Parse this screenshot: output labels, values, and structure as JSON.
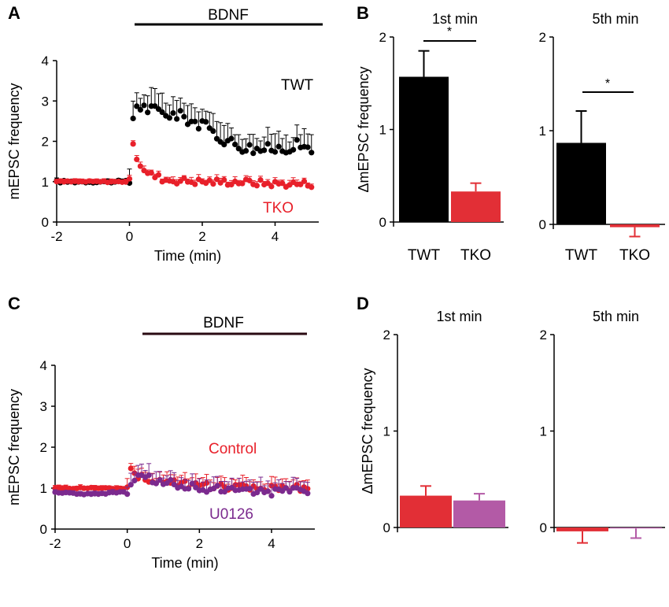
{
  "colors": {
    "black": "#000000",
    "red": "#e8202a",
    "purple": "#7b2a8e",
    "bar_red": "#e22f36",
    "bar_purple": "#b35aa6"
  },
  "panels": {
    "A": {
      "letter": "A",
      "drug": "BDNF"
    },
    "B": {
      "letter": "B",
      "ylabel": "ΔmEPSC frequency",
      "significance": "*"
    },
    "C": {
      "letter": "C",
      "drug": "BDNF"
    },
    "D": {
      "letter": "D",
      "ylabel": "ΔmEPSC frequency"
    }
  },
  "chart_data": [
    {
      "id": "A",
      "type": "scatter",
      "xlabel": "Time (min)",
      "ylabel": "mEPSC frequency",
      "xlim": [
        -2,
        5.2
      ],
      "ylim": [
        0,
        4
      ],
      "xticks": [
        "-2",
        "0",
        "2",
        "4"
      ],
      "yticks": [
        "0",
        "1",
        "2",
        "3",
        "4"
      ],
      "bdnf_from_min": 0,
      "series": [
        {
          "name": "TWT",
          "color": "#000000",
          "t": [
            -2.0,
            -1.0,
            -0.5,
            0.0,
            0.1,
            0.2,
            0.5,
            1.0,
            1.5,
            2.0,
            2.5,
            3.0,
            3.5,
            4.0,
            4.5,
            5.0
          ],
          "y": [
            1.0,
            1.0,
            1.0,
            1.0,
            2.6,
            2.9,
            2.8,
            2.7,
            2.6,
            2.4,
            2.1,
            1.9,
            1.8,
            1.8,
            1.9,
            1.85
          ],
          "err": 0.4
        },
        {
          "name": "TKO",
          "color": "#e8202a",
          "t": [
            -2.0,
            -1.0,
            -0.5,
            0.0,
            0.1,
            0.25,
            0.5,
            1.0,
            2.0,
            3.0,
            4.0,
            5.0
          ],
          "y": [
            1.0,
            1.0,
            1.0,
            1.0,
            1.85,
            1.5,
            1.2,
            1.05,
            1.0,
            1.0,
            0.95,
            0.95
          ],
          "err": 0.1
        }
      ]
    },
    {
      "id": "B-1",
      "type": "bar",
      "title": "1st min",
      "categories": [
        "TWT",
        "TKO"
      ],
      "values": [
        1.57,
        0.33
      ],
      "errors": [
        0.28,
        0.09
      ],
      "colors": [
        "#000000",
        "#e22f36"
      ],
      "ylim": [
        0,
        2
      ],
      "yticks": [
        "0",
        "1",
        "2"
      ]
    },
    {
      "id": "B-5",
      "type": "bar",
      "title": "5th min",
      "categories": [
        "TWT",
        "TKO"
      ],
      "values": [
        0.87,
        -0.03
      ],
      "errors": [
        0.34,
        0.1
      ],
      "colors": [
        "#000000",
        "#e22f36"
      ],
      "ylim": [
        0,
        2
      ],
      "yticks": [
        "0",
        "1",
        "2"
      ]
    },
    {
      "id": "C",
      "type": "scatter",
      "xlabel": "Time (min)",
      "ylabel": "mEPSC frequency",
      "xlim": [
        -2,
        5.2
      ],
      "ylim": [
        0,
        4
      ],
      "xticks": [
        "-2",
        "0",
        "2",
        "4"
      ],
      "yticks": [
        "0",
        "1",
        "2",
        "3",
        "4"
      ],
      "bdnf_from_min": 0.4,
      "series": [
        {
          "name": "Control",
          "color": "#e8202a",
          "t": [
            -2.0,
            -1.0,
            0.0,
            0.1,
            0.3,
            1.0,
            2.0,
            3.0,
            4.0,
            5.0
          ],
          "y": [
            1.0,
            1.0,
            1.0,
            1.4,
            1.3,
            1.15,
            1.05,
            1.0,
            1.0,
            1.0
          ],
          "err": 0.2
        },
        {
          "name": "U0126",
          "color": "#7b2a8e",
          "t": [
            -2.0,
            -1.0,
            0.0,
            0.3,
            1.0,
            2.0,
            3.0,
            4.0,
            5.0
          ],
          "y": [
            0.9,
            0.85,
            0.9,
            1.3,
            1.15,
            1.0,
            0.95,
            0.9,
            0.95
          ],
          "err": 0.25
        }
      ]
    },
    {
      "id": "D-1",
      "type": "bar",
      "title": "1st min",
      "categories": [
        "Control",
        "U0126"
      ],
      "values": [
        0.33,
        0.28
      ],
      "errors": [
        0.1,
        0.07
      ],
      "colors": [
        "#e22f36",
        "#b35aa6"
      ],
      "label_colors": [
        "#e8202a",
        "#7b2a8e"
      ],
      "ylim": [
        0,
        2
      ],
      "yticks": [
        "0",
        "1",
        "2"
      ]
    },
    {
      "id": "D-5",
      "type": "bar",
      "title": "5th min",
      "categories": [
        "Control",
        "U0126"
      ],
      "values": [
        -0.04,
        -0.01
      ],
      "errors": [
        0.12,
        0.1
      ],
      "colors": [
        "#e22f36",
        "#b35aa6"
      ],
      "label_colors": [
        "#e8202a",
        "#7b2a8e"
      ],
      "ylim": [
        0,
        2
      ],
      "yticks": [
        "0",
        "1",
        "2"
      ]
    }
  ]
}
